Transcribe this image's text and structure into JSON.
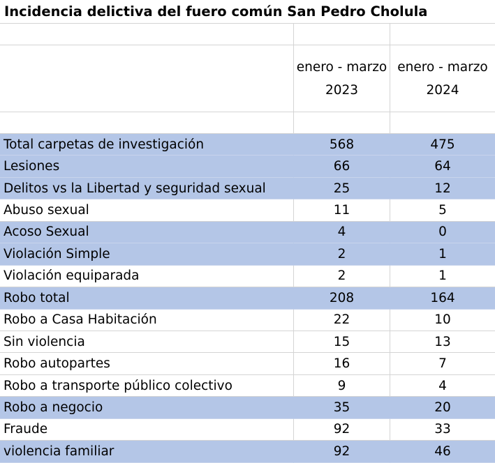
{
  "title": "Incidencia delictiva del fuero común San Pedro Cholula",
  "columns": [
    {
      "label": "enero - marzo 2023"
    },
    {
      "label": "enero - marzo 2024"
    }
  ],
  "rows": [
    {
      "label": "Total carpetas de investigación",
      "v2023": "568",
      "v2024": "475",
      "highlight": true
    },
    {
      "label": "Lesiones",
      "v2023": "66",
      "v2024": "64",
      "highlight": true
    },
    {
      "label": "Delitos vs la Libertad y seguridad sexual",
      "v2023": "25",
      "v2024": "12",
      "highlight": true
    },
    {
      "label": "Abuso sexual",
      "v2023": "11",
      "v2024": "5",
      "highlight": false
    },
    {
      "label": "Acoso Sexual",
      "v2023": "4",
      "v2024": "0",
      "highlight": true
    },
    {
      "label": "Violación Simple",
      "v2023": "2",
      "v2024": "1",
      "highlight": true
    },
    {
      "label": "Violación equiparada",
      "v2023": "2",
      "v2024": "1",
      "highlight": false
    },
    {
      "label": "Robo total",
      "v2023": "208",
      "v2024": "164",
      "highlight": true
    },
    {
      "label": "Robo a Casa Habitación",
      "v2023": "22",
      "v2024": "10",
      "highlight": false
    },
    {
      "label": "Sin violencia",
      "v2023": "15",
      "v2024": "13",
      "highlight": false
    },
    {
      "label": "Robo autopartes",
      "v2023": "16",
      "v2024": "7",
      "highlight": false
    },
    {
      "label": "Robo a transporte público colectivo",
      "v2023": "9",
      "v2024": "4",
      "highlight": false
    },
    {
      "label": "Robo a negocio",
      "v2023": "35",
      "v2024": "20",
      "highlight": true
    },
    {
      "label": "Fraude",
      "v2023": "92",
      "v2024": "33",
      "highlight": false
    },
    {
      "label": "violencia familiar",
      "v2023": "92",
      "v2024": "46",
      "highlight": true
    }
  ],
  "colors": {
    "highlight": "#b4c6e7",
    "gridline": "#d4d4d4"
  }
}
